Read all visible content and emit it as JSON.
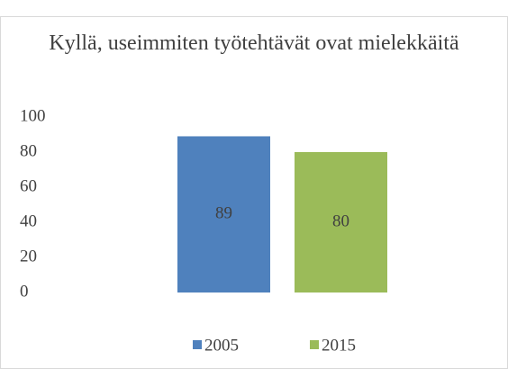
{
  "chart_data": {
    "type": "bar",
    "title": "Kyllä, useimmiten työtehtävät ovat mielekkäitä",
    "categories": [
      null
    ],
    "series": [
      {
        "name": "2005",
        "color": "#4f81bd",
        "values": [
          89
        ]
      },
      {
        "name": "2015",
        "color": "#9bbb59",
        "values": [
          80
        ]
      }
    ],
    "ylim": [
      0,
      100
    ],
    "yticks": [
      0,
      20,
      40,
      60,
      80,
      100
    ],
    "grid": false,
    "legend": "bottom"
  }
}
